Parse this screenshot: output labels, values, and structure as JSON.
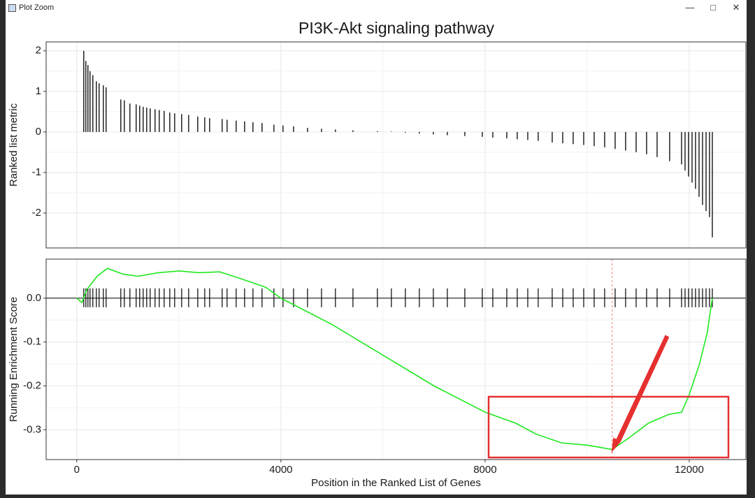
{
  "window": {
    "title": "Plot Zoom"
  },
  "chart_data": [
    {
      "type": "bar",
      "title": "PI3K-Akt signaling pathway",
      "ylabel": "Ranked list metric",
      "color": "#000000",
      "grid": true,
      "x": [
        137,
        178,
        219,
        260,
        315,
        384,
        438,
        521,
        575,
        863,
        932,
        1041,
        1164,
        1233,
        1301,
        1370,
        1438,
        1534,
        1616,
        1712,
        1822,
        1918,
        2055,
        2192,
        2370,
        2507,
        2603,
        2849,
        2945,
        3123,
        3288,
        3452,
        3630,
        3863,
        4041,
        4247,
        4521,
        4795,
        5068,
        5411,
        5890,
        6164,
        6438,
        6712,
        6986,
        7260,
        7603,
        7945,
        8151,
        8425,
        8630,
        8836,
        9041,
        9315,
        9521,
        9726,
        9932,
        10137,
        10342,
        10548,
        10753,
        10959,
        11164,
        11370,
        11616,
        11849,
        11918,
        11986,
        12055,
        12123,
        12192,
        12260,
        12329,
        12397,
        12452
      ],
      "values": [
        2.0,
        1.75,
        1.65,
        1.5,
        1.4,
        1.25,
        1.2,
        1.15,
        1.1,
        0.8,
        0.78,
        0.7,
        0.68,
        0.65,
        0.62,
        0.6,
        0.58,
        0.56,
        0.54,
        0.52,
        0.48,
        0.46,
        0.44,
        0.42,
        0.38,
        0.36,
        0.34,
        0.32,
        0.3,
        0.28,
        0.26,
        0.24,
        0.22,
        0.18,
        0.16,
        0.14,
        0.1,
        0.08,
        0.06,
        0.04,
        0.02,
        0.01,
        -0.02,
        -0.04,
        -0.06,
        -0.08,
        -0.1,
        -0.12,
        -0.14,
        -0.16,
        -0.18,
        -0.2,
        -0.22,
        -0.26,
        -0.28,
        -0.3,
        -0.32,
        -0.35,
        -0.38,
        -0.42,
        -0.46,
        -0.5,
        -0.55,
        -0.62,
        -0.72,
        -0.8,
        -0.95,
        -1.1,
        -1.25,
        -1.4,
        -1.6,
        -1.8,
        -1.95,
        -2.1,
        -2.6
      ],
      "xlim": [
        -600,
        13110
      ],
      "xticks": [
        0,
        4000,
        8000,
        12000
      ],
      "ylim": [
        -2.86,
        2.22
      ],
      "yticks": [
        -2,
        -1,
        0,
        1,
        2
      ]
    },
    {
      "type": "line",
      "ylabel": "Running Enrichment Score",
      "xlabel": "Position in the Ranked List of Genes",
      "color": "#1fe81f",
      "grid": true,
      "x": [
        0,
        100,
        200,
        400,
        600,
        900,
        1200,
        1600,
        2000,
        2400,
        2800,
        3200,
        3700,
        4000,
        5000,
        6000,
        7000,
        8000,
        8600,
        9000,
        9500,
        10000,
        10490,
        10800,
        11200,
        11600,
        11850,
        12000,
        12200,
        12350,
        12452
      ],
      "values": [
        0,
        -0.01,
        0.02,
        0.05,
        0.068,
        0.055,
        0.05,
        0.058,
        0.062,
        0.058,
        0.06,
        0.045,
        0.025,
        0,
        -0.06,
        -0.13,
        -0.2,
        -0.26,
        -0.285,
        -0.31,
        -0.33,
        -0.335,
        -0.345,
        -0.32,
        -0.285,
        -0.265,
        -0.26,
        -0.22,
        -0.15,
        -0.08,
        0
      ],
      "es_position": 10490,
      "xlim": [
        -600,
        13110
      ],
      "xticks": [
        0,
        4000,
        8000,
        12000
      ],
      "ylim": [
        -0.368,
        0.089
      ],
      "yticks": [
        -0.3,
        -0.2,
        -0.1,
        {
          "value": 0,
          "label": "0.0"
        }
      ]
    }
  ]
}
